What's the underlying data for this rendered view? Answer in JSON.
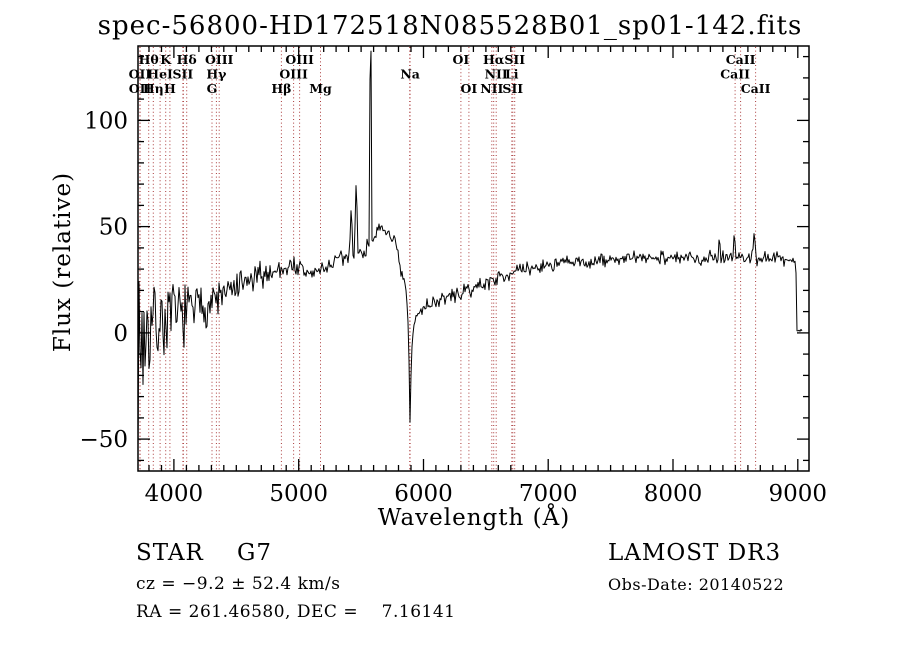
{
  "title": "spec-56800-HD172518N085528B01_sp01-142.fits",
  "footer": {
    "class_line": "STAR    G7",
    "survey_line": "LAMOST DR3",
    "cz_line": "cz = −9.2 ± 52.4 km/s",
    "obsdate_line": "Obs-Date: 20140522",
    "radec_line": "RA = 261.46580, DEC =    7.16141"
  },
  "chart_data": {
    "type": "line",
    "title": "spec-56800-HD172518N085528B01_sp01-142.fits",
    "xlabel": "Wavelength (Å)",
    "ylabel": "Flux (relative)",
    "xlim": [
      3712,
      9090
    ],
    "ylim": [
      -65,
      135
    ],
    "xticks": [
      4000,
      5000,
      6000,
      7000,
      8000,
      9000
    ],
    "xtick_labels": [
      "4000",
      "5000",
      "6000",
      "7000",
      "8000",
      "9000"
    ],
    "yticks": [
      -50,
      0,
      50,
      100
    ],
    "ytick_labels": [
      "−50",
      "0",
      "50",
      "100"
    ],
    "minor_xtick_step": 100,
    "minor_ytick_step": 10,
    "grid": false,
    "axis_color": "#000000",
    "spectrum_color": "#000000",
    "marker_color": "#aa3a3a",
    "line_markers": [
      {
        "label": "OII",
        "wavelength": 3727,
        "row": 2
      },
      {
        "label": "OII",
        "wavelength": 3729,
        "row": 3
      },
      {
        "label": "Hθ",
        "wavelength": 3798,
        "row": 1
      },
      {
        "label": "Hη",
        "wavelength": 3835,
        "row": 3
      },
      {
        "label": "HeI",
        "wavelength": 3889,
        "row": 2
      },
      {
        "label": "K",
        "wavelength": 3934,
        "row": 1
      },
      {
        "label": "H",
        "wavelength": 3968,
        "row": 3
      },
      {
        "label": "SII",
        "wavelength": 4072,
        "row": 2
      },
      {
        "label": "Hδ",
        "wavelength": 4102,
        "row": 1
      },
      {
        "label": "G",
        "wavelength": 4305,
        "row": 3
      },
      {
        "label": "Hγ",
        "wavelength": 4340,
        "row": 2
      },
      {
        "label": "OIII",
        "wavelength": 4363,
        "row": 1
      },
      {
        "label": "Hβ",
        "wavelength": 4861,
        "row": 3
      },
      {
        "label": "OIII",
        "wavelength": 4959,
        "row": 2
      },
      {
        "label": "OIII",
        "wavelength": 5007,
        "row": 1
      },
      {
        "label": "Mg",
        "wavelength": 5175,
        "row": 3
      },
      {
        "label": "Na",
        "wavelength": 5893,
        "row": 2
      },
      {
        "label": "OI",
        "wavelength": 6300,
        "row": 1
      },
      {
        "label": "OI",
        "wavelength": 6364,
        "row": 3
      },
      {
        "label": "NII",
        "wavelength": 6548,
        "row": 3
      },
      {
        "label": "Hα",
        "wavelength": 6563,
        "row": 1
      },
      {
        "label": "NII",
        "wavelength": 6583,
        "row": 2
      },
      {
        "label": "Li",
        "wavelength": 6708,
        "row": 2
      },
      {
        "label": "SII",
        "wavelength": 6716,
        "row": 3
      },
      {
        "label": "SII",
        "wavelength": 6731,
        "row": 1
      },
      {
        "label": "CaII",
        "wavelength": 8498,
        "row": 2
      },
      {
        "label": "CaII",
        "wavelength": 8542,
        "row": 1
      },
      {
        "label": "CaII",
        "wavelength": 8662,
        "row": 3
      }
    ],
    "extra_marker_wavelengths": [
      4076,
      5890
    ],
    "continuum_anchors": [
      [
        3712,
        -10,
        36
      ],
      [
        3725,
        -6,
        34
      ],
      [
        3745,
        -2,
        30
      ],
      [
        3770,
        0,
        26
      ],
      [
        3800,
        3,
        22
      ],
      [
        3830,
        4,
        20
      ],
      [
        3860,
        5,
        19
      ],
      [
        3900,
        6,
        17
      ],
      [
        3940,
        6,
        16
      ],
      [
        3980,
        8,
        14
      ],
      [
        4020,
        8,
        13
      ],
      [
        4060,
        9,
        13
      ],
      [
        4100,
        10,
        12
      ],
      [
        4150,
        11,
        11
      ],
      [
        4200,
        12,
        10
      ],
      [
        4250,
        13,
        10
      ],
      [
        4300,
        15,
        9
      ],
      [
        4350,
        16,
        8
      ],
      [
        4400,
        18,
        8
      ],
      [
        4450,
        19,
        7
      ],
      [
        4500,
        21,
        7
      ],
      [
        4550,
        22,
        7
      ],
      [
        4600,
        24,
        6
      ],
      [
        4650,
        25,
        6
      ],
      [
        4700,
        27,
        6
      ],
      [
        4750,
        28,
        5
      ],
      [
        4800,
        29,
        5
      ],
      [
        4850,
        30,
        5
      ],
      [
        4900,
        31,
        5
      ],
      [
        4960,
        32,
        5
      ],
      [
        5010,
        30,
        4
      ],
      [
        5060,
        28,
        4
      ],
      [
        5110,
        28,
        4
      ],
      [
        5160,
        29,
        4
      ],
      [
        5210,
        31,
        4
      ],
      [
        5260,
        32,
        4
      ],
      [
        5310,
        34,
        4
      ],
      [
        5360,
        35,
        4
      ],
      [
        5410,
        36,
        4
      ],
      [
        5460,
        37,
        4
      ],
      [
        5510,
        38,
        4
      ],
      [
        5555,
        40,
        4
      ],
      [
        5585,
        45,
        3
      ],
      [
        5620,
        47,
        3
      ],
      [
        5680,
        48,
        3
      ],
      [
        5730,
        47,
        3
      ],
      [
        5770,
        43,
        3
      ],
      [
        5800,
        33,
        4
      ],
      [
        5830,
        26,
        4
      ],
      [
        5855,
        21,
        3
      ],
      [
        5870,
        13,
        2
      ],
      [
        5881,
        -2,
        2
      ],
      [
        5888,
        -28,
        2
      ],
      [
        5892,
        -43,
        2
      ],
      [
        5897,
        -28,
        2
      ],
      [
        5904,
        -12,
        2
      ],
      [
        5912,
        -2,
        2
      ],
      [
        5925,
        4,
        3
      ],
      [
        5945,
        8,
        3
      ],
      [
        5970,
        10,
        3
      ],
      [
        6000,
        12,
        3
      ],
      [
        6050,
        14,
        3
      ],
      [
        6120,
        15,
        3
      ],
      [
        6200,
        17,
        3
      ],
      [
        6280,
        18,
        3
      ],
      [
        6360,
        20,
        3
      ],
      [
        6440,
        22,
        3
      ],
      [
        6520,
        24,
        3
      ],
      [
        6600,
        26,
        3
      ],
      [
        6680,
        28,
        3
      ],
      [
        6760,
        29,
        3
      ],
      [
        6840,
        30,
        3
      ],
      [
        6920,
        31,
        3
      ],
      [
        7000,
        32,
        3
      ],
      [
        7150,
        33,
        3
      ],
      [
        7300,
        33,
        3
      ],
      [
        7450,
        34,
        3
      ],
      [
        7600,
        35,
        3
      ],
      [
        7750,
        35,
        3
      ],
      [
        7900,
        36,
        3
      ],
      [
        8050,
        35,
        3
      ],
      [
        8200,
        35,
        3
      ],
      [
        8350,
        36,
        3
      ],
      [
        8500,
        36,
        3
      ],
      [
        8650,
        35,
        3
      ],
      [
        8800,
        35,
        3
      ],
      [
        8900,
        35,
        3
      ],
      [
        8985,
        33,
        2
      ],
      [
        8994,
        1,
        1
      ],
      [
        9040,
        1,
        1
      ]
    ],
    "spikes": [
      {
        "wavelength": 5420,
        "peak": 58
      },
      {
        "wavelength": 5460,
        "peak": 70
      },
      {
        "wavelength": 5577,
        "peak": 140
      },
      {
        "wavelength": 8370,
        "peak": 44
      },
      {
        "wavelength": 8490,
        "peak": 46
      },
      {
        "wavelength": 8650,
        "peak": 47
      }
    ],
    "noise_seed": 7
  }
}
